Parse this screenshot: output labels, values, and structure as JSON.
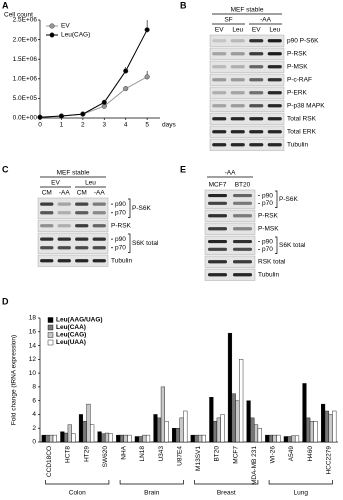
{
  "chart_data": [
    {
      "type": "line",
      "panel_label": "A",
      "ylabel": "Cell count",
      "xlabel": "days",
      "x": [
        0,
        1,
        2,
        3,
        4,
        5
      ],
      "xlim": [
        0,
        5.6
      ],
      "xticks": [
        0,
        1,
        2,
        3,
        4,
        5
      ],
      "ylim": [
        0,
        2500000
      ],
      "yticks": [
        {
          "value": 0,
          "label": "0.0E+00"
        },
        {
          "value": 500000,
          "label": "5.0E+05"
        },
        {
          "value": 1000000,
          "label": "1.0E+06"
        },
        {
          "value": 1500000,
          "label": "1.5E+06"
        },
        {
          "value": 2000000,
          "label": "2.0E+06"
        },
        {
          "value": 2500000,
          "label": "2.5E+06"
        }
      ],
      "legend": "upper left",
      "series": [
        {
          "name": "EV",
          "color": "#999999",
          "values": [
            20000,
            50000,
            100000,
            300000,
            750000,
            1050000
          ],
          "errors": [
            0,
            0,
            0,
            30000,
            60000,
            150000
          ]
        },
        {
          "name": "Leu(CAG)",
          "color": "#000000",
          "values": [
            20000,
            50000,
            100000,
            400000,
            1200000,
            2250000
          ],
          "errors": [
            0,
            0,
            0,
            40000,
            100000,
            250000
          ]
        }
      ]
    },
    {
      "type": "bar",
      "panel_label": "D",
      "ylabel": "Fold change (tRNA expression)",
      "ylim": [
        0,
        18
      ],
      "yticks": [
        0,
        2,
        4,
        6,
        8,
        10,
        12,
        14,
        16,
        18
      ],
      "legend": "upper left",
      "groups": [
        {
          "label": "Colon",
          "categories": [
            "CCD18CO",
            "HCT8",
            "HT29",
            "SW620"
          ]
        },
        {
          "label": "Brain",
          "categories": [
            "NHA",
            "LN18",
            "U343",
            "U87E4"
          ]
        },
        {
          "label": "Breast",
          "categories": [
            "M13SV1",
            "BT20",
            "MCF7",
            "MDA-MB 231"
          ]
        },
        {
          "label": "Lung",
          "categories": [
            "WI-26",
            "A549",
            "H460",
            "HCC2279"
          ]
        }
      ],
      "series": [
        {
          "name": "Leu(AAG/UAG)",
          "color": "#000000",
          "values": [
            1,
            1.5,
            4,
            1.5,
            1,
            0.8,
            4,
            2,
            1,
            6.5,
            15.8,
            6,
            1,
            0.8,
            8.5,
            5.5
          ]
        },
        {
          "name": "Leu(CAA)",
          "color": "#777777",
          "values": [
            1,
            1.3,
            3,
            1.2,
            1,
            0.8,
            3.5,
            2,
            1,
            3,
            7,
            3.5,
            1,
            0.8,
            3.5,
            4.5
          ]
        },
        {
          "name": "Leu(CAG)",
          "color": "#c8c8c8",
          "values": [
            1,
            2.5,
            5.5,
            1.3,
            1,
            1,
            8,
            3.5,
            1,
            3.5,
            6,
            2.5,
            1,
            0.9,
            3,
            4
          ]
        },
        {
          "name": "Leu(UAA)",
          "color": "#ffffff",
          "values": [
            1,
            1.2,
            2.5,
            1.2,
            1,
            1,
            3,
            4.5,
            1,
            4,
            12,
            2,
            1,
            0.9,
            3,
            4.5
          ]
        }
      ]
    }
  ],
  "blots": {
    "B": {
      "panel_label": "B",
      "header": "MEF stable",
      "conditions": [
        {
          "label": "SF",
          "lanes": [
            "EV",
            "Leu"
          ]
        },
        {
          "label": "-AA",
          "lanes": [
            "EV",
            "Leu"
          ]
        }
      ],
      "rows": [
        {
          "label": "p90 P-S6K"
        },
        {
          "label": "P-RSK"
        },
        {
          "label": "P-MSK"
        },
        {
          "label": "P-c-RAF"
        },
        {
          "label": "P-ERK"
        },
        {
          "label": "P-p38 MAPK"
        },
        {
          "label": "Total RSK"
        },
        {
          "label": "Total ERK"
        },
        {
          "label": "Tubulin"
        }
      ]
    },
    "C": {
      "panel_label": "C",
      "header": "MEF stable",
      "conditions": [
        {
          "label": "EV",
          "lanes": [
            "CM",
            "-AA"
          ]
        },
        {
          "label": "Leu",
          "lanes": [
            "CM",
            "-AA"
          ]
        }
      ],
      "rows": [
        {
          "label": "P-S6K",
          "bands": [
            "p90",
            "p70"
          ]
        },
        {
          "label": "P-RSK"
        },
        {
          "label": "S6K total",
          "bands": [
            "p90",
            "p70"
          ]
        },
        {
          "label": "Tubulin"
        }
      ]
    },
    "E": {
      "panel_label": "E",
      "header": "-AA",
      "conditions": [
        {
          "lanes": [
            "MCF7",
            "BT20"
          ]
        }
      ],
      "rows": [
        {
          "label": "P-S6K",
          "bands": [
            "p90",
            "p70"
          ]
        },
        {
          "label": "P-RSK"
        },
        {
          "label": "P-MSK"
        },
        {
          "label": "S6K total",
          "bands": [
            "p90",
            "p70"
          ]
        },
        {
          "label": "RSK total"
        },
        {
          "label": "Tubulin"
        }
      ]
    }
  }
}
